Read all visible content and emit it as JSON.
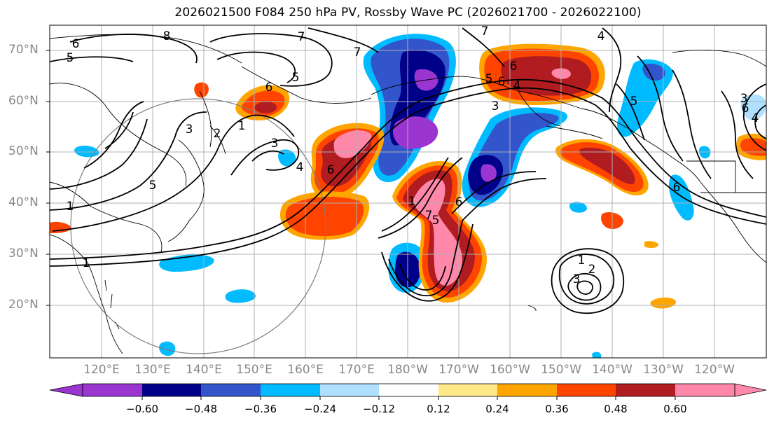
{
  "title": "2026021500 F084 250 hPa PV, Rossby Wave PC (2026021700 - 2026022100)",
  "lat_labels": [
    "70°N",
    "60°N",
    "50°N",
    "40°N",
    "30°N",
    "20°N"
  ],
  "lon_labels": [
    "120°E",
    "130°E",
    "140°E",
    "150°E",
    "160°E",
    "170°E",
    "180°W",
    "170°W",
    "160°W",
    "150°W",
    "140°W",
    "130°W",
    "120°W"
  ],
  "colorbar": {
    "ticks": [
      "−0.60",
      "−0.48",
      "−0.36",
      "−0.24",
      "−0.12",
      "0.12",
      "0.24",
      "0.36",
      "0.48",
      "0.60"
    ],
    "colors": [
      "#9a35d0",
      "#000088",
      "#3355cc",
      "#00bbff",
      "#b0e0ff",
      "#ffffff",
      "#ffe888",
      "#ffa500",
      "#ff4400",
      "#b01c20",
      "#ff88aa"
    ]
  },
  "contour_labels": [
    "6",
    "5",
    "8",
    "7",
    "6",
    "5",
    "7",
    "7",
    "6",
    "4",
    "6",
    "5",
    "3",
    "4",
    "1",
    "3",
    "3",
    "4",
    "6",
    "1",
    "1",
    "2",
    "3",
    "5",
    "7",
    "6",
    "6",
    "5",
    "1",
    "5",
    "3",
    "4",
    "1",
    "2",
    "3",
    "6"
  ]
}
